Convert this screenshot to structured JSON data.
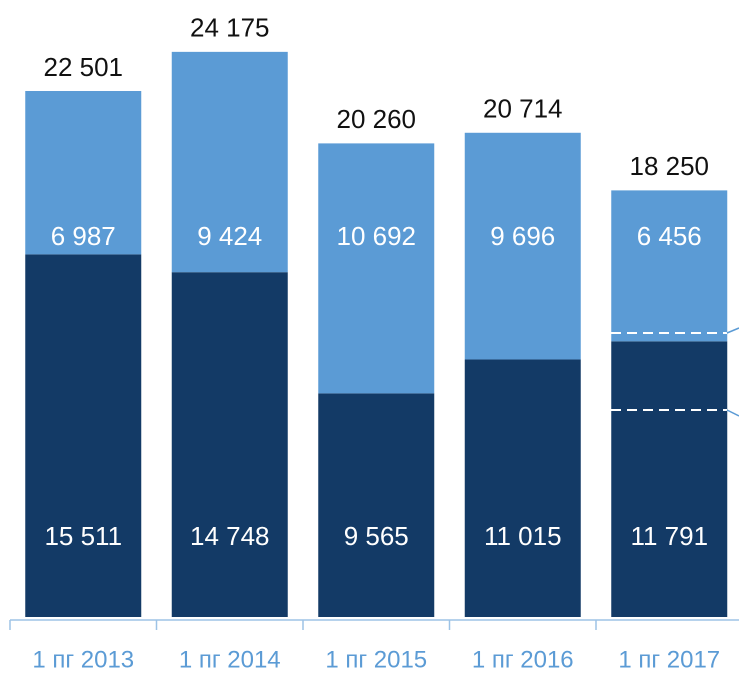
{
  "chart_data": {
    "type": "stacked_bar",
    "categories": [
      "1 пг 2013",
      "1 пг 2014",
      "1 пг 2015",
      "1 пг 2016",
      "1 пг 2017"
    ],
    "series": [
      {
        "color": "#133a66",
        "values": [
          15511,
          14748,
          9565,
          11015,
          11791
        ],
        "value_labels": [
          "15 511",
          "14 748",
          "9 565",
          "11 015",
          "11 791"
        ]
      },
      {
        "color": "#5b9bd5",
        "values": [
          6987,
          9424,
          10692,
          9696,
          6456
        ],
        "value_labels": [
          "6 987",
          "9 424",
          "10 692",
          "9 696",
          "6 456"
        ]
      }
    ],
    "totals": [
      22501,
      24175,
      20260,
      20714,
      18250
    ],
    "total_labels": [
      "22 501",
      "24 175",
      "20 260",
      "20 714",
      "18 250"
    ],
    "ylim": [
      0,
      25000
    ]
  }
}
